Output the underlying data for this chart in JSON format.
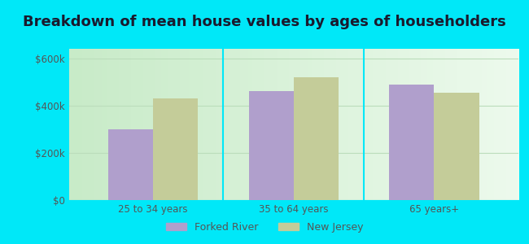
{
  "title": "Breakdown of mean house values by ages of householders",
  "categories": [
    "25 to 34 years",
    "35 to 64 years",
    "65 years+"
  ],
  "forked_river_values": [
    300000,
    460000,
    490000
  ],
  "new_jersey_values": [
    430000,
    520000,
    455000
  ],
  "forked_river_color": "#b09fcc",
  "new_jersey_color": "#c4cc99",
  "background_outer": "#00e8f8",
  "background_inner_left": "#c8ebc8",
  "background_inner_right": "#edfaed",
  "yticks": [
    0,
    200000,
    400000,
    600000
  ],
  "ytick_labels": [
    "$0",
    "$200k",
    "$400k",
    "$600k"
  ],
  "ylim": [
    0,
    640000
  ],
  "legend_labels": [
    "Forked River",
    "New Jersey"
  ],
  "title_fontsize": 13,
  "bar_width": 0.32,
  "grid_color": "#bbddbb",
  "tick_label_color": "#555555",
  "separator_color": "#00e8f8"
}
